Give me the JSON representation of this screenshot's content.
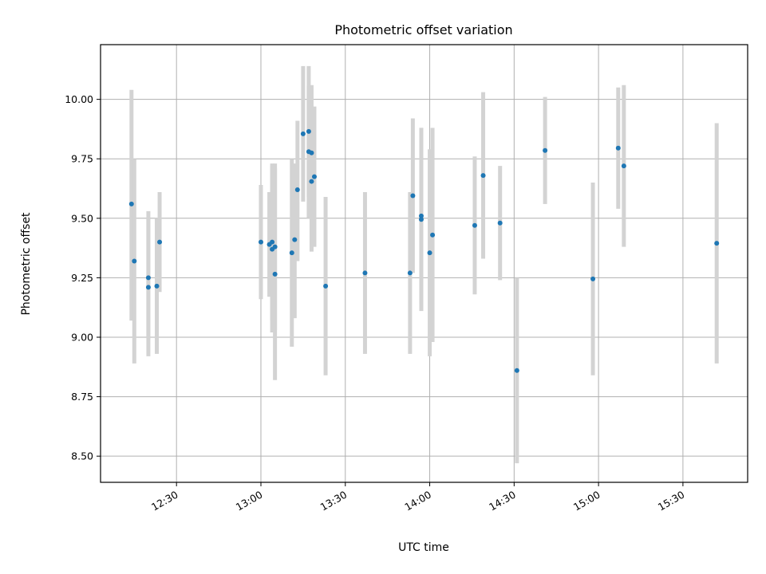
{
  "chart_data": {
    "type": "scatter",
    "title": "Photometric offset variation",
    "xlabel": "UTC time",
    "ylabel": "Photometric offset",
    "x_axis": {
      "kind": "time",
      "range": [
        "12:03",
        "15:53"
      ],
      "ticks": [
        "12:30",
        "13:00",
        "13:30",
        "14:00",
        "14:30",
        "15:00",
        "15:30"
      ]
    },
    "y_axis": {
      "range": [
        8.39,
        10.23
      ],
      "ticks": [
        "8.50",
        "8.75",
        "9.00",
        "9.25",
        "9.50",
        "9.75",
        "10.00"
      ]
    },
    "grid": true,
    "legend": "none",
    "colors": {
      "point": "#1f77b4",
      "errorbar": "#d3d3d3",
      "grid": "#b0b0b0"
    },
    "points": [
      {
        "x": "12:14",
        "y": 9.56,
        "ylow": 9.07,
        "yhigh": 10.04
      },
      {
        "x": "12:15",
        "y": 9.32,
        "ylow": 8.89,
        "yhigh": 9.75
      },
      {
        "x": "12:20",
        "y": 9.25,
        "ylow": 9.0,
        "yhigh": 9.5
      },
      {
        "x": "12:20",
        "y": 9.21,
        "ylow": 8.92,
        "yhigh": 9.53
      },
      {
        "x": "12:23",
        "y": 9.215,
        "ylow": 8.93,
        "yhigh": 9.5
      },
      {
        "x": "12:24",
        "y": 9.4,
        "ylow": 9.19,
        "yhigh": 9.61
      },
      {
        "x": "13:00",
        "y": 9.4,
        "ylow": 9.16,
        "yhigh": 9.64
      },
      {
        "x": "13:03",
        "y": 9.39,
        "ylow": 9.17,
        "yhigh": 9.61
      },
      {
        "x": "13:04",
        "y": 9.4,
        "ylow": 9.07,
        "yhigh": 9.73
      },
      {
        "x": "13:04",
        "y": 9.37,
        "ylow": 9.02,
        "yhigh": 9.72
      },
      {
        "x": "13:05",
        "y": 9.38,
        "ylow": 9.03,
        "yhigh": 9.73
      },
      {
        "x": "13:05",
        "y": 9.265,
        "ylow": 8.82,
        "yhigh": 9.71
      },
      {
        "x": "13:11",
        "y": 9.355,
        "ylow": 8.96,
        "yhigh": 9.75
      },
      {
        "x": "13:12",
        "y": 9.41,
        "ylow": 9.08,
        "yhigh": 9.73
      },
      {
        "x": "13:13",
        "y": 9.62,
        "ylow": 9.32,
        "yhigh": 9.91
      },
      {
        "x": "13:15",
        "y": 9.855,
        "ylow": 9.57,
        "yhigh": 10.14
      },
      {
        "x": "13:17",
        "y": 9.865,
        "ylow": 9.59,
        "yhigh": 10.14
      },
      {
        "x": "13:17",
        "y": 9.78,
        "ylow": 9.5,
        "yhigh": 10.06
      },
      {
        "x": "13:18",
        "y": 9.775,
        "ylow": 9.49,
        "yhigh": 10.06
      },
      {
        "x": "13:18",
        "y": 9.655,
        "ylow": 9.36,
        "yhigh": 9.95
      },
      {
        "x": "13:19",
        "y": 9.675,
        "ylow": 9.38,
        "yhigh": 9.97
      },
      {
        "x": "13:23",
        "y": 9.215,
        "ylow": 8.84,
        "yhigh": 9.59
      },
      {
        "x": "13:37",
        "y": 9.27,
        "ylow": 8.93,
        "yhigh": 9.61
      },
      {
        "x": "13:53",
        "y": 9.27,
        "ylow": 8.93,
        "yhigh": 9.61
      },
      {
        "x": "13:54",
        "y": 9.595,
        "ylow": 9.27,
        "yhigh": 9.92
      },
      {
        "x": "13:57",
        "y": 9.51,
        "ylow": 9.14,
        "yhigh": 9.88
      },
      {
        "x": "13:57",
        "y": 9.495,
        "ylow": 9.11,
        "yhigh": 9.88
      },
      {
        "x": "14:00",
        "y": 9.355,
        "ylow": 8.92,
        "yhigh": 9.79
      },
      {
        "x": "14:01",
        "y": 9.43,
        "ylow": 8.98,
        "yhigh": 9.88
      },
      {
        "x": "14:16",
        "y": 9.47,
        "ylow": 9.18,
        "yhigh": 9.76
      },
      {
        "x": "14:19",
        "y": 9.68,
        "ylow": 9.33,
        "yhigh": 10.03
      },
      {
        "x": "14:25",
        "y": 9.48,
        "ylow": 9.24,
        "yhigh": 9.72
      },
      {
        "x": "14:31",
        "y": 8.86,
        "ylow": 8.47,
        "yhigh": 9.25
      },
      {
        "x": "14:41",
        "y": 9.785,
        "ylow": 9.56,
        "yhigh": 10.01
      },
      {
        "x": "14:58",
        "y": 9.245,
        "ylow": 8.84,
        "yhigh": 9.65
      },
      {
        "x": "15:07",
        "y": 9.795,
        "ylow": 9.54,
        "yhigh": 10.05
      },
      {
        "x": "15:09",
        "y": 9.72,
        "ylow": 9.38,
        "yhigh": 10.06
      },
      {
        "x": "15:42",
        "y": 9.395,
        "ylow": 8.89,
        "yhigh": 9.9
      }
    ]
  }
}
